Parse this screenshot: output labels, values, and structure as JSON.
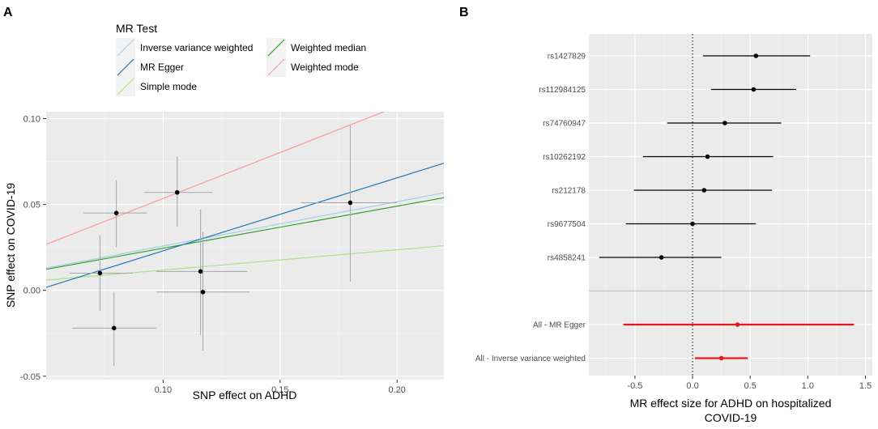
{
  "chart_data": [
    {
      "panel": "A",
      "type": "scatter",
      "xlabel": "SNP effect on ADHD",
      "ylabel": "SNP effect on COVID-19",
      "xlim": [
        0.05,
        0.22
      ],
      "ylim": [
        -0.052,
        0.104
      ],
      "xticks": [
        0.1,
        0.15,
        0.2
      ],
      "yticks": [
        -0.05,
        0.0,
        0.05,
        0.1
      ],
      "xtick_labels": [
        "0.10",
        "0.15",
        "0.20"
      ],
      "ytick_labels": [
        "-0.05",
        "0.00",
        "0.05",
        "0.10"
      ],
      "legend_title": "MR Test",
      "points": [
        {
          "x": 0.073,
          "y": 0.01,
          "xlo": 0.06,
          "xhi": 0.087,
          "ylo": -0.012,
          "yhi": 0.032
        },
        {
          "x": 0.08,
          "y": 0.045,
          "xlo": 0.066,
          "xhi": 0.093,
          "ylo": 0.025,
          "yhi": 0.064
        },
        {
          "x": 0.079,
          "y": -0.022,
          "xlo": 0.061,
          "xhi": 0.097,
          "ylo": -0.044,
          "yhi": -0.001
        },
        {
          "x": 0.106,
          "y": 0.057,
          "xlo": 0.092,
          "xhi": 0.121,
          "ylo": 0.037,
          "yhi": 0.078
        },
        {
          "x": 0.116,
          "y": 0.011,
          "xlo": 0.097,
          "xhi": 0.136,
          "ylo": -0.026,
          "yhi": 0.047
        },
        {
          "x": 0.117,
          "y": -0.001,
          "xlo": 0.097,
          "xhi": 0.137,
          "ylo": -0.035,
          "yhi": 0.034
        },
        {
          "x": 0.18,
          "y": 0.051,
          "xlo": 0.159,
          "xhi": 0.2,
          "ylo": 0.005,
          "yhi": 0.096
        }
      ],
      "series": [
        {
          "name": "Inverse variance weighted",
          "color": "#a6cee3",
          "intercept": 0.0,
          "slope": 0.258
        },
        {
          "name": "MR Egger",
          "color": "#1f78b4",
          "intercept": -0.0195,
          "slope": 0.425
        },
        {
          "name": "Simple mode",
          "color": "#b2df8a",
          "intercept": 0.0,
          "slope": 0.118
        },
        {
          "name": "Weighted median",
          "color": "#33a02c",
          "intercept": 0.0,
          "slope": 0.245
        },
        {
          "name": "Weighted mode",
          "color": "#fb9a99",
          "intercept": 0.0,
          "slope": 0.535
        }
      ]
    },
    {
      "panel": "B",
      "type": "forest",
      "xlabel_line1": "MR effect size for ADHD on hospitalized",
      "xlabel_line2": "COVID-19",
      "xlim": [
        -0.9,
        1.56
      ],
      "xticks": [
        -0.5,
        0.0,
        0.5,
        1.0,
        1.5
      ],
      "xtick_labels": [
        "-0.5",
        "0.0",
        "0.5",
        "1.0",
        "1.5"
      ],
      "rows": [
        {
          "label": "rs1427829",
          "est": 0.55,
          "lo": 0.09,
          "hi": 1.02,
          "color": "#000000"
        },
        {
          "label": "rs112984125",
          "est": 0.53,
          "lo": 0.16,
          "hi": 0.9,
          "color": "#000000"
        },
        {
          "label": "rs74760947",
          "est": 0.28,
          "lo": -0.22,
          "hi": 0.77,
          "color": "#000000"
        },
        {
          "label": "rs10262192",
          "est": 0.13,
          "lo": -0.43,
          "hi": 0.7,
          "color": "#000000"
        },
        {
          "label": "rs212178",
          "est": 0.1,
          "lo": -0.51,
          "hi": 0.69,
          "color": "#000000"
        },
        {
          "label": "rs9677504",
          "est": 0.0,
          "lo": -0.58,
          "hi": 0.55,
          "color": "#000000"
        },
        {
          "label": "rs4858241",
          "est": -0.27,
          "lo": -0.81,
          "hi": 0.25,
          "color": "#000000"
        },
        {
          "label": "",
          "separator": true
        },
        {
          "label": "All - MR Egger",
          "est": 0.39,
          "lo": -0.6,
          "hi": 1.4,
          "color": "#e41a1c"
        },
        {
          "label": "All - Inverse variance weighted",
          "est": 0.25,
          "lo": 0.02,
          "hi": 0.48,
          "color": "#e41a1c"
        }
      ]
    }
  ],
  "colors": {
    "panel_bg": "#ebebeb",
    "grid": "#ffffff",
    "errorbar": "#a6a6a6",
    "separator": "#bdbdbd"
  }
}
